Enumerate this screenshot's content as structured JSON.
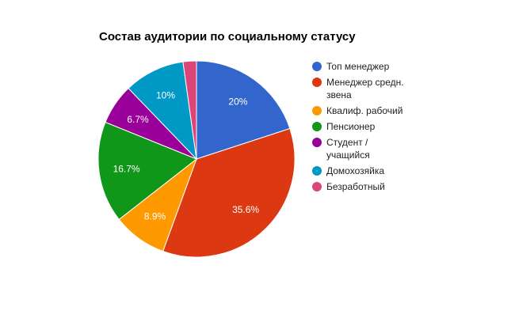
{
  "chart_data": {
    "type": "pie",
    "title": "Состав аудитории по социальному статусу",
    "legend_position": "right",
    "slices": [
      {
        "label": "Топ менеджер",
        "label_lines": [
          "Топ менеджер"
        ],
        "value": 20.0,
        "value_label": "20%",
        "color": "#3366cc"
      },
      {
        "label": "Менеджер средн. звена",
        "label_lines": [
          "Менеджер средн.",
          "звена"
        ],
        "value": 35.6,
        "value_label": "35.6%",
        "color": "#dc3912"
      },
      {
        "label": "Квалиф. рабочий",
        "label_lines": [
          "Квалиф. рабочий"
        ],
        "value": 8.9,
        "value_label": "8.9%",
        "color": "#ff9900"
      },
      {
        "label": "Пенсионер",
        "label_lines": [
          "Пенсионер"
        ],
        "value": 16.7,
        "value_label": "16.7%",
        "color": "#109618"
      },
      {
        "label": "Студент / учащийся",
        "label_lines": [
          "Студент /",
          "учащийся"
        ],
        "value": 6.7,
        "value_label": "6.7%",
        "color": "#990099"
      },
      {
        "label": "Домохозяйка",
        "label_lines": [
          "Домохозяйка"
        ],
        "value": 10.0,
        "value_label": "10%",
        "color": "#0099c6"
      },
      {
        "label": "Безработный",
        "label_lines": [
          "Безработный"
        ],
        "value": 2.2,
        "value_label": "",
        "color": "#dd4477"
      }
    ]
  }
}
